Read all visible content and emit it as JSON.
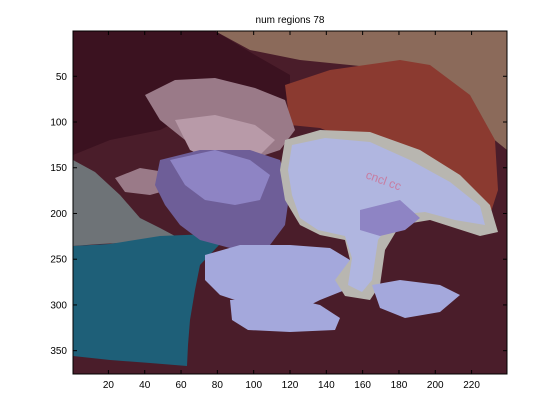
{
  "chart_data": {
    "type": "image",
    "title": "num regions 78",
    "xlabel": "",
    "ylabel": "",
    "xlim": [
      0.5,
      239.5
    ],
    "ylim": [
      375.5,
      0.5
    ],
    "y_reversed": true,
    "grid": false,
    "x_ticks": [
      20,
      40,
      60,
      80,
      100,
      120,
      140,
      160,
      180,
      200,
      220
    ],
    "y_ticks": [
      50,
      100,
      150,
      200,
      250,
      300,
      350
    ],
    "num_regions": 78,
    "region_colors": {
      "background_maroon": "#4a1d2a",
      "dark_maroon": "#3b1220",
      "tan_wall": "#8b6a5a",
      "red_shirt": "#8b3a30",
      "gray_slate": "#6e7377",
      "teal": "#1e5f78",
      "skin_mauve": "#9a7a88",
      "skin_light": "#b89aa8",
      "purple_dark": "#6e5e98",
      "purple_light": "#8e84c4",
      "lavender": "#a4a8dc",
      "light_blue": "#b0b6e0",
      "gray_outline": "#b8b6b0",
      "pink_text": "#c87ca0"
    }
  }
}
